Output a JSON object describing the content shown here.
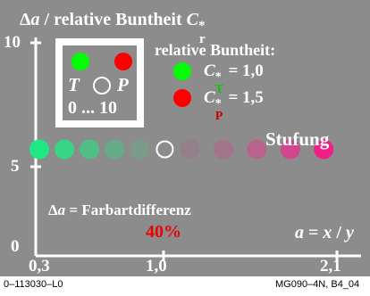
{
  "chart_data": {
    "type": "scatter",
    "title": {
      "prefix": "Δ",
      "var": "a",
      "rest": " / relative Buntheit ",
      "symbol": "C",
      "sup": "*",
      "sub": "r"
    },
    "y_ticks": [
      "10",
      "5",
      "0"
    ],
    "x_ticks": [
      "0,3",
      "1,0",
      "2,1"
    ],
    "ylim": [
      0,
      10
    ],
    "xlim": [
      0.3,
      2.1
    ],
    "points": [
      {
        "x": 0.3,
        "y": 5,
        "color": "#1ee882"
      },
      {
        "x": 0.45,
        "y": 5,
        "color": "#37d584"
      },
      {
        "x": 0.6,
        "y": 5,
        "color": "#4fbf86"
      },
      {
        "x": 0.75,
        "y": 5,
        "color": "#66ab89"
      },
      {
        "x": 0.9,
        "y": 5,
        "color": "#7a9a8a"
      },
      {
        "x": 1.05,
        "y": 5,
        "color": "none",
        "outline": "#ffffff"
      },
      {
        "x": 1.2,
        "y": 5,
        "color": "#93808b"
      },
      {
        "x": 1.4,
        "y": 5,
        "color": "#a4738c"
      },
      {
        "x": 1.6,
        "y": 5,
        "color": "#b8628e"
      },
      {
        "x": 1.8,
        "y": 5,
        "color": "#d1468d"
      },
      {
        "x": 2.0,
        "y": 5,
        "color": "#f02088"
      }
    ],
    "colors": {
      "green": "#00ff00",
      "red": "#ff0000",
      "green_sub": "#00cc00",
      "red_sub": "#cc0000",
      "percent": "#ee0000"
    }
  },
  "legend_box": {
    "left_letter": "T",
    "right_letter": "P",
    "range": "0 ... 10"
  },
  "legend": {
    "title": "relative Buntheit:",
    "symbol": "C",
    "sup": "*",
    "items": [
      {
        "sub": "T",
        "value": " = 1,0"
      },
      {
        "sub": "P",
        "value": " = 1,5"
      }
    ]
  },
  "stufung": "Stufung",
  "difference": {
    "prefix": "Δ",
    "var": "a",
    "text": " = Farbartdifferenz"
  },
  "percent": "40%",
  "axis_formula": {
    "a": "a",
    "eq": " = ",
    "x": "x",
    "slash": " / ",
    "y": "y"
  },
  "footer": {
    "left": "0–113030–L0",
    "right": "MG090–4N, B4_04"
  }
}
